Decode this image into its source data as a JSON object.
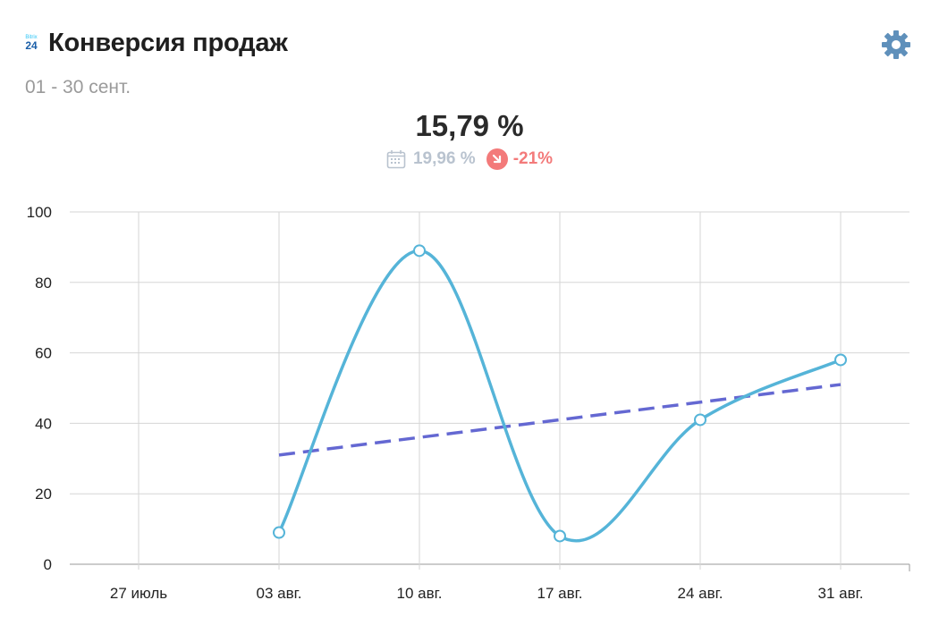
{
  "header": {
    "logo_top": "Bitrix",
    "logo_bottom": "24",
    "title": "Конверсия продаж",
    "period": "01 - 30 сент."
  },
  "kpi": {
    "value": "15,79 %",
    "previous": "19,96 %",
    "delta": "-21%"
  },
  "colors": {
    "line": "#55b4d8",
    "trend": "#6468d2",
    "negative": "#f37a7a",
    "grid": "#d6d6d6",
    "gear": "#5f90bb"
  },
  "icons": {
    "settings": "gear-icon",
    "calendar": "calendar-icon",
    "trend_down": "arrow-down-icon"
  },
  "chart_data": {
    "type": "line",
    "categories": [
      "27 июль",
      "03 авг.",
      "10 авг.",
      "17 авг.",
      "24 авг.",
      "31 авг."
    ],
    "series": [
      {
        "values": [
          null,
          9,
          89,
          8,
          41,
          58
        ]
      },
      {
        "values": [
          null,
          31,
          36,
          41,
          46,
          51
        ],
        "style": "dashed trend"
      }
    ],
    "yticks": [
      "0",
      "20",
      "40",
      "60",
      "80",
      "100"
    ],
    "ylim": [
      0,
      100
    ],
    "grid": true
  }
}
